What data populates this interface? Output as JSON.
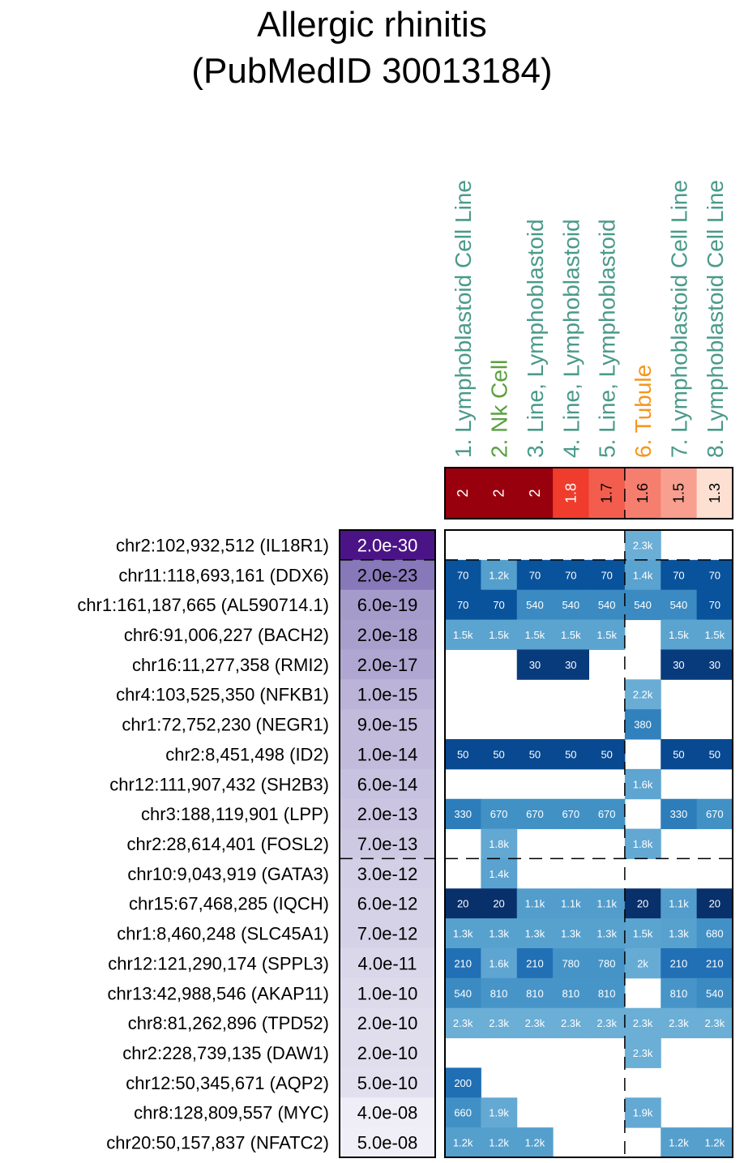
{
  "chart_data": {
    "type": "heatmap",
    "title": [
      "Allergic rhinitis",
      "(PubMedID 30013184)"
    ],
    "columns": [
      {
        "label": "1. Lymphoblastoid Cell Line",
        "color": "#4a9a8a",
        "score": 2,
        "score_label": "2"
      },
      {
        "label": "2. Nk Cell",
        "color": "#5aa040",
        "score": 2,
        "score_label": "2"
      },
      {
        "label": "3. Line, Lymphoblastoid",
        "color": "#4a9a8a",
        "score": 2,
        "score_label": "2"
      },
      {
        "label": "4. Line, Lymphoblastoid",
        "color": "#4a9a8a",
        "score": 1.8,
        "score_label": "1.8"
      },
      {
        "label": "5. Line, Lymphoblastoid",
        "color": "#4a9a8a",
        "score": 1.7,
        "score_label": "1.7"
      },
      {
        "label": "6. Tubule",
        "color": "#f5961e",
        "score": 1.6,
        "score_label": "1.6"
      },
      {
        "label": "7. Lymphoblastoid Cell Line",
        "color": "#4a9a8a",
        "score": 1.5,
        "score_label": "1.5"
      },
      {
        "label": "8. Lymphoblastoid Cell Line",
        "color": "#4a9a8a",
        "score": 1.3,
        "score_label": "1.3"
      }
    ],
    "score_range": [
      1.3,
      2
    ],
    "rows": [
      {
        "label": "chr2:102,932,512 (IL18R1)",
        "pvalue": "2.0e-30",
        "log10p": -29.7,
        "cells": [
          "",
          "",
          "",
          "",
          "",
          "2.3k",
          "",
          ""
        ]
      },
      {
        "label": "chr11:118,693,161 (DDX6)",
        "pvalue": "2.0e-23",
        "log10p": -22.7,
        "cells": [
          "70",
          "1.2k",
          "70",
          "70",
          "70",
          "1.4k",
          "70",
          "70"
        ]
      },
      {
        "label": "chr1:161,187,665 (AL590714.1)",
        "pvalue": "6.0e-19",
        "log10p": -18.2,
        "cells": [
          "70",
          "70",
          "540",
          "540",
          "540",
          "540",
          "540",
          "70"
        ]
      },
      {
        "label": "chr6:91,006,227 (BACH2)",
        "pvalue": "2.0e-18",
        "log10p": -17.7,
        "cells": [
          "1.5k",
          "1.5k",
          "1.5k",
          "1.5k",
          "1.5k",
          "",
          "1.5k",
          "1.5k"
        ]
      },
      {
        "label": "chr16:11,277,358 (RMI2)",
        "pvalue": "2.0e-17",
        "log10p": -16.7,
        "cells": [
          "",
          "",
          "30",
          "30",
          "",
          "",
          "30",
          "30"
        ]
      },
      {
        "label": "chr4:103,525,350 (NFKB1)",
        "pvalue": "1.0e-15",
        "log10p": -15.0,
        "cells": [
          "",
          "",
          "",
          "",
          "",
          "2.2k",
          "",
          ""
        ]
      },
      {
        "label": "chr1:72,752,230 (NEGR1)",
        "pvalue": "9.0e-15",
        "log10p": -14.0,
        "cells": [
          "",
          "",
          "",
          "",
          "",
          "380",
          "",
          ""
        ]
      },
      {
        "label": "chr2:8,451,498 (ID2)",
        "pvalue": "1.0e-14",
        "log10p": -14.0,
        "cells": [
          "50",
          "50",
          "50",
          "50",
          "50",
          "",
          "50",
          "50"
        ]
      },
      {
        "label": "chr12:111,907,432 (SH2B3)",
        "pvalue": "6.0e-14",
        "log10p": -13.2,
        "cells": [
          "",
          "",
          "",
          "",
          "",
          "1.6k",
          "",
          ""
        ]
      },
      {
        "label": "chr3:188,119,901 (LPP)",
        "pvalue": "2.0e-13",
        "log10p": -12.7,
        "cells": [
          "330",
          "670",
          "670",
          "670",
          "670",
          "",
          "330",
          "670"
        ]
      },
      {
        "label": "chr2:28,614,401 (FOSL2)",
        "pvalue": "7.0e-13",
        "log10p": -12.2,
        "cells": [
          "",
          "1.8k",
          "",
          "",
          "",
          "1.8k",
          "",
          ""
        ]
      },
      {
        "label": "chr10:9,043,919 (GATA3)",
        "pvalue": "3.0e-12",
        "log10p": -11.5,
        "cells": [
          "",
          "1.4k",
          "",
          "",
          "",
          "",
          "",
          ""
        ]
      },
      {
        "label": "chr15:67,468,285 (IQCH)",
        "pvalue": "6.0e-12",
        "log10p": -11.2,
        "cells": [
          "20",
          "20",
          "1.1k",
          "1.1k",
          "1.1k",
          "20",
          "1.1k",
          "20"
        ]
      },
      {
        "label": "chr1:8,460,248 (SLC45A1)",
        "pvalue": "7.0e-12",
        "log10p": -11.2,
        "cells": [
          "1.3k",
          "1.3k",
          "1.3k",
          "1.3k",
          "1.3k",
          "1.5k",
          "1.3k",
          "680"
        ]
      },
      {
        "label": "chr12:121,290,174 (SPPL3)",
        "pvalue": "4.0e-11",
        "log10p": -10.4,
        "cells": [
          "210",
          "1.6k",
          "210",
          "780",
          "780",
          "2k",
          "210",
          "210"
        ]
      },
      {
        "label": "chr13:42,988,546 (AKAP11)",
        "pvalue": "1.0e-10",
        "log10p": -10.0,
        "cells": [
          "540",
          "810",
          "810",
          "810",
          "810",
          "",
          "810",
          "540"
        ]
      },
      {
        "label": "chr8:81,262,896 (TPD52)",
        "pvalue": "2.0e-10",
        "log10p": -9.7,
        "cells": [
          "2.3k",
          "2.3k",
          "2.3k",
          "2.3k",
          "2.3k",
          "2.3k",
          "2.3k",
          "2.3k"
        ]
      },
      {
        "label": "chr2:228,739,135 (DAW1)",
        "pvalue": "2.0e-10",
        "log10p": -9.7,
        "cells": [
          "",
          "",
          "",
          "",
          "",
          "2.3k",
          "",
          ""
        ]
      },
      {
        "label": "chr12:50,345,671 (AQP2)",
        "pvalue": "5.0e-10",
        "log10p": -9.3,
        "cells": [
          "200",
          "",
          "",
          "",
          "",
          "",
          "",
          ""
        ]
      },
      {
        "label": "chr8:128,809,557 (MYC)",
        "pvalue": "4.0e-08",
        "log10p": -7.4,
        "cells": [
          "660",
          "1.9k",
          "",
          "",
          "",
          "1.9k",
          "",
          ""
        ]
      },
      {
        "label": "chr20:50,157,837 (NFATC2)",
        "pvalue": "5.0e-08",
        "log10p": -7.3,
        "cells": [
          "1.2k",
          "1.2k",
          "1.2k",
          "",
          "",
          "",
          "1.2k",
          "1.2k"
        ]
      }
    ],
    "dashed_row_separators_after": [
      0,
      10
    ],
    "dashed_column_separator_after": 4,
    "cell_scale": {
      "min_label": "20",
      "max_label": "2.3k"
    },
    "colors": {
      "pvalue_dark": "#4a1486",
      "pvalue_light": "#f0eff7",
      "score_high": "#99000d",
      "score_low": "#fee0d2",
      "cell_dark": "#08306b",
      "cell_light": "#6baed6"
    }
  }
}
